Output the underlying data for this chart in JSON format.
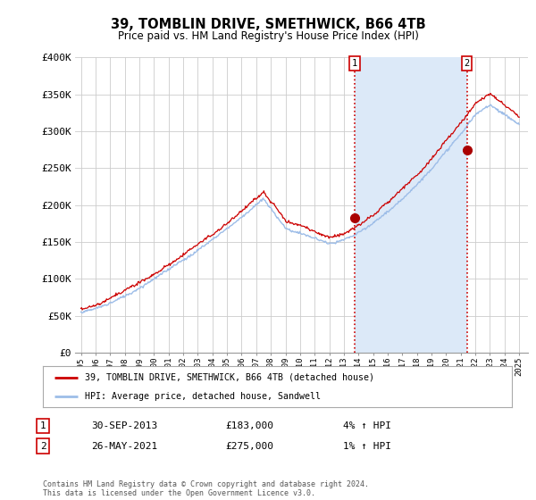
{
  "title": "39, TOMBLIN DRIVE, SMETHWICK, B66 4TB",
  "subtitle": "Price paid vs. HM Land Registry's House Price Index (HPI)",
  "ylabel_ticks": [
    "£0",
    "£50K",
    "£100K",
    "£150K",
    "£200K",
    "£250K",
    "£300K",
    "£350K",
    "£400K"
  ],
  "ytick_values": [
    0,
    50000,
    100000,
    150000,
    200000,
    250000,
    300000,
    350000,
    400000
  ],
  "ylim": [
    0,
    400000
  ],
  "hpi_color": "#9dbde8",
  "hpi_fill_color": "#dce9f8",
  "price_color": "#cc0000",
  "marker_color": "#aa0000",
  "vline_color": "#cc0000",
  "background_color": "#ffffff",
  "grid_color": "#cccccc",
  "legend_label_price": "39, TOMBLIN DRIVE, SMETHWICK, B66 4TB (detached house)",
  "legend_label_hpi": "HPI: Average price, detached house, Sandwell",
  "annotation1_date": "30-SEP-2013",
  "annotation1_price": "£183,000",
  "annotation1_note": "4% ↑ HPI",
  "annotation2_date": "26-MAY-2021",
  "annotation2_price": "£275,000",
  "annotation2_note": "1% ↑ HPI",
  "footer": "Contains HM Land Registry data © Crown copyright and database right 2024.\nThis data is licensed under the Open Government Licence v3.0.",
  "sale1_year": 2013.75,
  "sale1_value": 183000,
  "sale2_year": 2021.42,
  "sale2_value": 275000
}
